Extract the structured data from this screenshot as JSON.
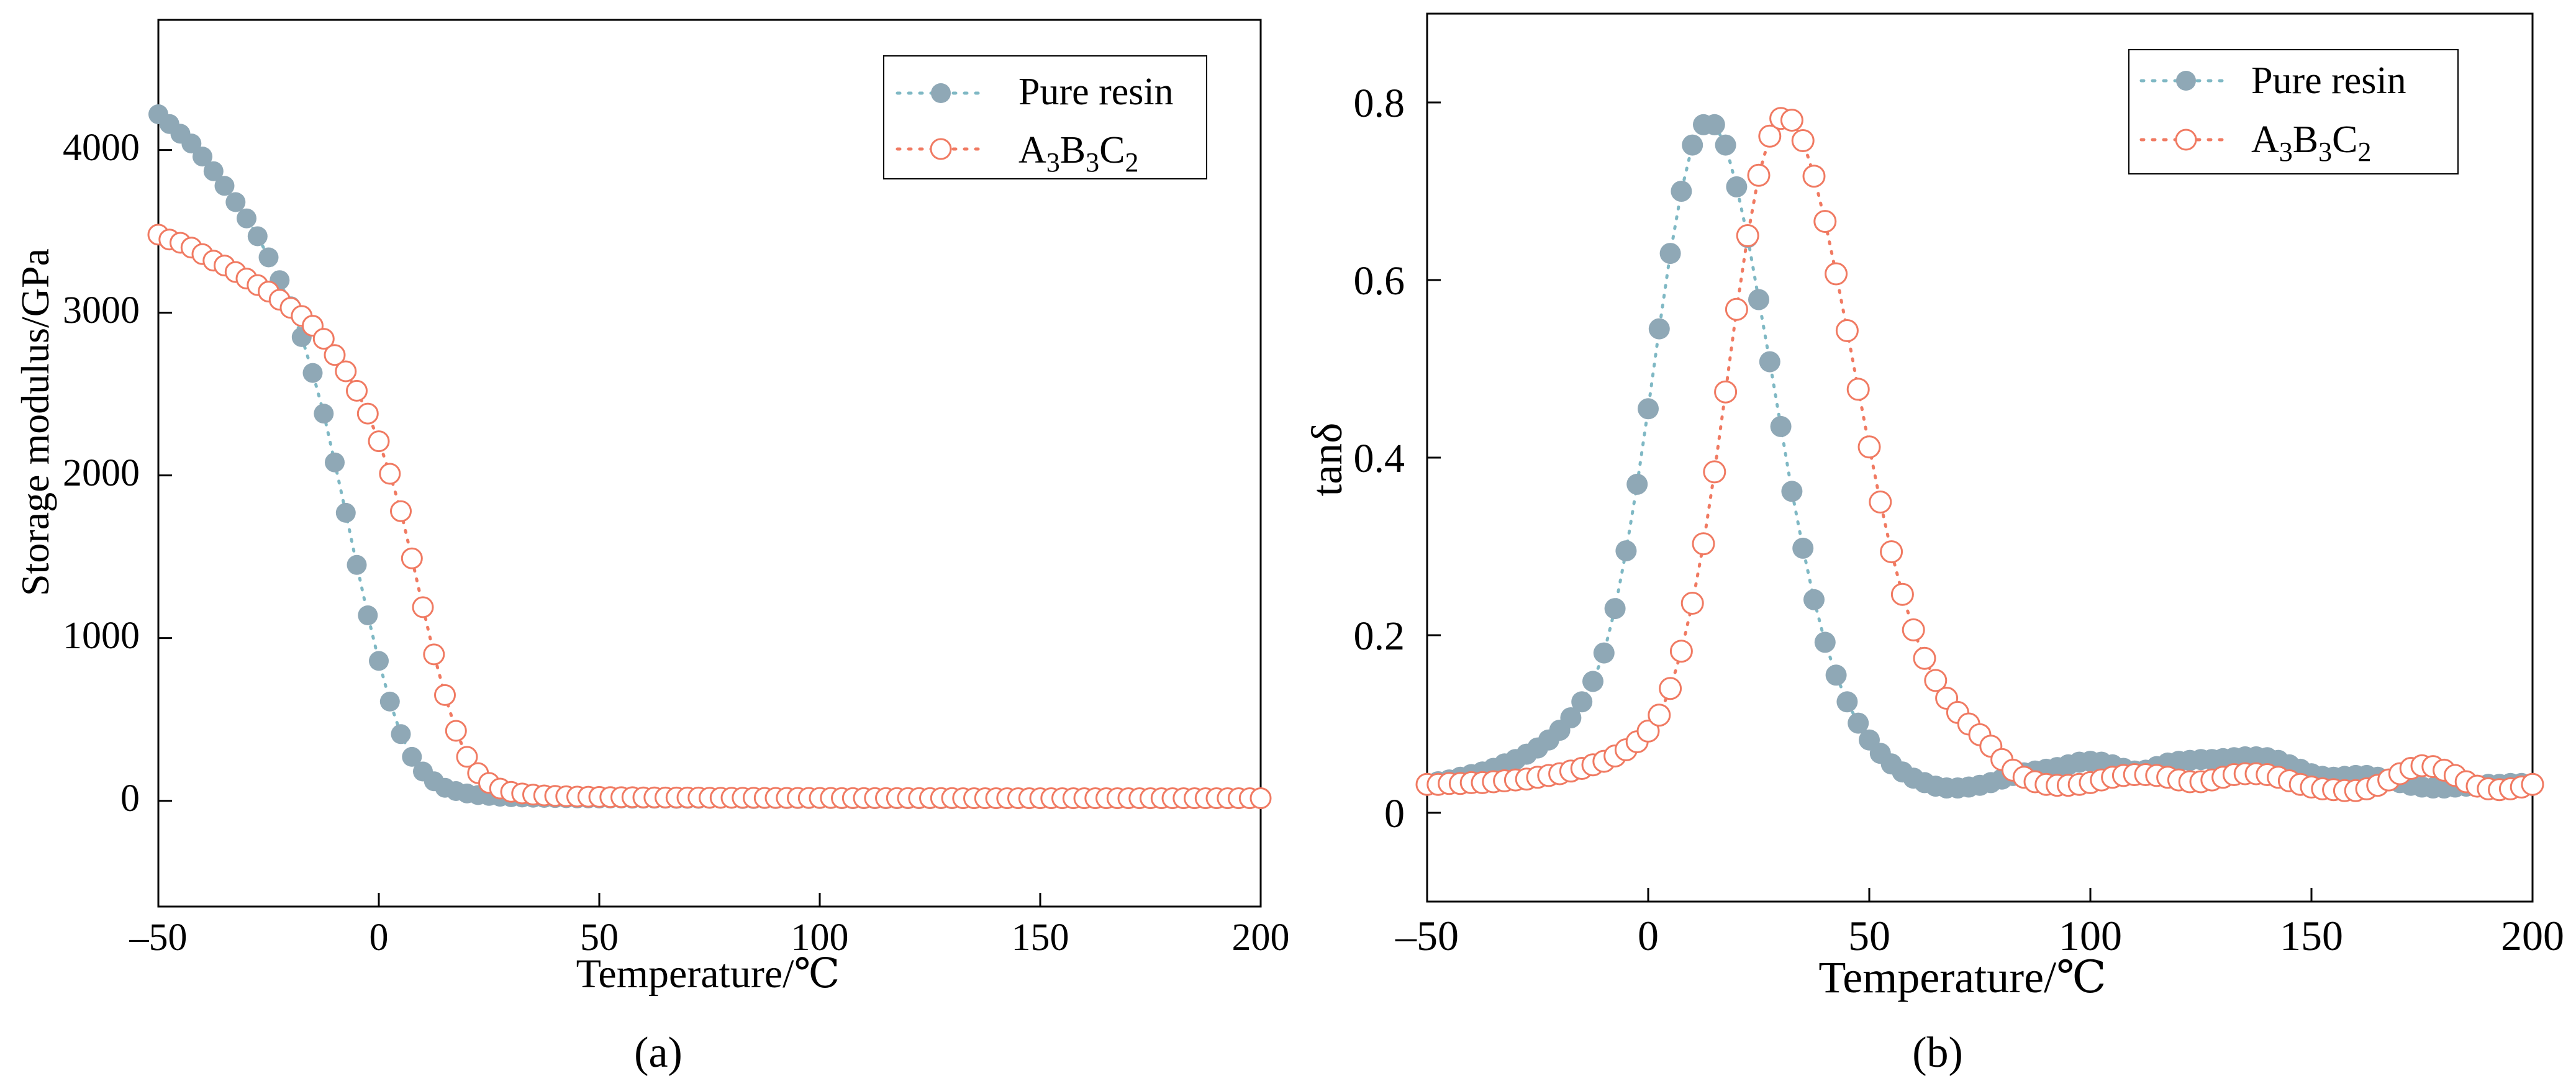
{
  "chart_data": [
    {
      "type": "scatter",
      "panel_label": "(a)",
      "title": "",
      "xlabel": "Temperature/℃",
      "ylabel": "Storage modulus/GPa",
      "xlim": [
        -50,
        200
      ],
      "ylim": [
        -650,
        4800
      ],
      "xticks": [
        -50,
        0,
        50,
        100,
        150,
        200
      ],
      "xtick_labels": [
        "–50",
        "0",
        "50",
        "100",
        "150",
        "200"
      ],
      "yticks": [
        0,
        1000,
        2000,
        3000,
        4000
      ],
      "ytick_labels": [
        "0",
        "1000",
        "2000",
        "3000",
        "4000"
      ],
      "legend_position": "top-right",
      "grid": false,
      "series": [
        {
          "name": "Pure resin",
          "legend_text": "Pure resin",
          "marker": "filled-circle",
          "color": "#8fa8b6",
          "line_color": "#7fb8c4",
          "x": [
            -50,
            -47.5,
            -45,
            -42.5,
            -40,
            -37.5,
            -35,
            -32.5,
            -30,
            -27.5,
            -25,
            -22.5,
            -20,
            -17.5,
            -15,
            -12.5,
            -10,
            -7.5,
            -5,
            -2.5,
            0,
            2.5,
            5,
            7.5,
            10,
            12.5,
            15,
            17.5,
            20,
            22.5,
            25,
            27.5,
            30,
            32.5,
            35,
            37.5,
            40,
            42.5,
            45,
            47.5,
            50,
            52.5,
            55,
            57.5,
            60,
            62.5,
            65,
            67.5,
            70,
            72.5,
            75,
            77.5,
            80,
            82.5,
            85,
            87.5,
            90,
            92.5,
            95,
            97.5,
            100,
            102.5,
            105,
            107.5,
            110,
            112.5,
            115,
            117.5,
            120,
            122.5,
            125,
            127.5,
            130,
            132.5,
            135,
            137.5,
            140,
            142.5,
            145,
            147.5,
            150,
            152.5,
            155,
            157.5,
            160,
            162.5,
            165,
            167.5,
            170,
            172.5,
            175,
            177.5,
            180,
            182.5,
            185,
            187.5,
            190,
            192.5,
            195,
            197.5,
            200
          ],
          "y": [
            4220,
            4160,
            4100,
            4040,
            3960,
            3870,
            3780,
            3680,
            3580,
            3470,
            3340,
            3200,
            3040,
            2850,
            2630,
            2380,
            2080,
            1770,
            1450,
            1140,
            860,
            610,
            410,
            270,
            180,
            120,
            80,
            60,
            45,
            35,
            30,
            25,
            22,
            20,
            19,
            18,
            17,
            16,
            15,
            15,
            14,
            14,
            14,
            13,
            13,
            13,
            13,
            12,
            12,
            12,
            12,
            12,
            12,
            11,
            11,
            11,
            11,
            11,
            11,
            11,
            11,
            11,
            10,
            10,
            10,
            10,
            10,
            10,
            10,
            10,
            10,
            10,
            10,
            10,
            10,
            10,
            10,
            10,
            10,
            10,
            10,
            10,
            10,
            10,
            10,
            10,
            10,
            10,
            10,
            10,
            10,
            10,
            10,
            10,
            10,
            10,
            10,
            10,
            10,
            10,
            10
          ]
        },
        {
          "name": "A3B3C2",
          "legend_text": "A3B3C2",
          "marker": "open-circle",
          "color": "#f07a62",
          "line_color": "#f07a62",
          "x": [
            -50,
            -47.5,
            -45,
            -42.5,
            -40,
            -37.5,
            -35,
            -32.5,
            -30,
            -27.5,
            -25,
            -22.5,
            -20,
            -17.5,
            -15,
            -12.5,
            -10,
            -7.5,
            -5,
            -2.5,
            0,
            2.5,
            5,
            7.5,
            10,
            12.5,
            15,
            17.5,
            20,
            22.5,
            25,
            27.5,
            30,
            32.5,
            35,
            37.5,
            40,
            42.5,
            45,
            47.5,
            50,
            52.5,
            55,
            57.5,
            60,
            62.5,
            65,
            67.5,
            70,
            72.5,
            75,
            77.5,
            80,
            82.5,
            85,
            87.5,
            90,
            92.5,
            95,
            97.5,
            100,
            102.5,
            105,
            107.5,
            110,
            112.5,
            115,
            117.5,
            120,
            122.5,
            125,
            127.5,
            130,
            132.5,
            135,
            137.5,
            140,
            142.5,
            145,
            147.5,
            150,
            152.5,
            155,
            157.5,
            160,
            162.5,
            165,
            167.5,
            170,
            172.5,
            175,
            177.5,
            180,
            182.5,
            185,
            187.5,
            190,
            192.5,
            195,
            197.5,
            200
          ],
          "y": [
            3480,
            3450,
            3430,
            3400,
            3360,
            3320,
            3290,
            3250,
            3210,
            3170,
            3130,
            3080,
            3030,
            2980,
            2920,
            2840,
            2740,
            2640,
            2520,
            2380,
            2210,
            2010,
            1780,
            1490,
            1190,
            900,
            650,
            430,
            270,
            170,
            110,
            75,
            55,
            45,
            38,
            33,
            30,
            28,
            26,
            25,
            24,
            23,
            22,
            22,
            21,
            21,
            20,
            20,
            20,
            20,
            19,
            19,
            19,
            19,
            19,
            18,
            18,
            18,
            18,
            18,
            18,
            18,
            17,
            17,
            17,
            17,
            17,
            17,
            17,
            17,
            17,
            17,
            17,
            16,
            16,
            16,
            16,
            16,
            16,
            16,
            16,
            16,
            16,
            16,
            16,
            16,
            16,
            16,
            16,
            16,
            16,
            16,
            16,
            16,
            16,
            16,
            16,
            16,
            16,
            16,
            16
          ]
        }
      ]
    },
    {
      "type": "scatter",
      "panel_label": "(b)",
      "title": "",
      "xlabel": "Temperature/℃",
      "ylabel": "tanδ",
      "xlim": [
        -50,
        200
      ],
      "ylim": [
        -0.1,
        0.9
      ],
      "xticks": [
        -50,
        0,
        50,
        100,
        150,
        200
      ],
      "xtick_labels": [
        "–50",
        "0",
        "50",
        "100",
        "150",
        "200"
      ],
      "yticks": [
        0,
        0.2,
        0.4,
        0.6,
        0.8
      ],
      "ytick_labels": [
        "0",
        "0.2",
        "0.4",
        "0.6",
        "0.8"
      ],
      "legend_position": "top-right",
      "grid": false,
      "series": [
        {
          "name": "Pure resin",
          "legend_text": "Pure resin",
          "marker": "filled-circle",
          "color": "#8fa8b6",
          "line_color": "#7fb8c4",
          "x": [
            -50,
            -47.5,
            -45,
            -42.5,
            -40,
            -37.5,
            -35,
            -32.5,
            -30,
            -27.5,
            -25,
            -22.5,
            -20,
            -17.5,
            -15,
            -12.5,
            -10,
            -7.5,
            -5,
            -2.5,
            0,
            2.5,
            5,
            7.5,
            10,
            12.5,
            15,
            17.5,
            20,
            22.5,
            25,
            27.5,
            30,
            32.5,
            35,
            37.5,
            40,
            42.5,
            45,
            47.5,
            50,
            52.5,
            55,
            57.5,
            60,
            62.5,
            65,
            67.5,
            70,
            72.5,
            75,
            77.5,
            80,
            82.5,
            85,
            87.5,
            90,
            92.5,
            95,
            97.5,
            100,
            102.5,
            105,
            107.5,
            110,
            112.5,
            115,
            117.5,
            120,
            122.5,
            125,
            127.5,
            130,
            132.5,
            135,
            137.5,
            140,
            142.5,
            145,
            147.5,
            150,
            152.5,
            155,
            157.5,
            160,
            162.5,
            165,
            167.5,
            170,
            172.5,
            175,
            177.5,
            180,
            182.5,
            185,
            187.5,
            190,
            192.5,
            195,
            197.5,
            200
          ],
          "y": [
            0.033,
            0.035,
            0.037,
            0.04,
            0.043,
            0.046,
            0.05,
            0.055,
            0.06,
            0.066,
            0.073,
            0.082,
            0.093,
            0.107,
            0.125,
            0.148,
            0.18,
            0.23,
            0.295,
            0.37,
            0.455,
            0.545,
            0.63,
            0.7,
            0.752,
            0.775,
            0.775,
            0.752,
            0.705,
            0.648,
            0.578,
            0.508,
            0.435,
            0.362,
            0.298,
            0.24,
            0.192,
            0.155,
            0.125,
            0.101,
            0.082,
            0.067,
            0.055,
            0.046,
            0.039,
            0.034,
            0.03,
            0.028,
            0.028,
            0.029,
            0.031,
            0.034,
            0.038,
            0.042,
            0.045,
            0.047,
            0.049,
            0.051,
            0.054,
            0.057,
            0.058,
            0.057,
            0.054,
            0.05,
            0.047,
            0.048,
            0.052,
            0.056,
            0.058,
            0.059,
            0.06,
            0.06,
            0.061,
            0.062,
            0.063,
            0.063,
            0.062,
            0.059,
            0.054,
            0.049,
            0.044,
            0.041,
            0.04,
            0.041,
            0.042,
            0.042,
            0.04,
            0.037,
            0.034,
            0.031,
            0.029,
            0.028,
            0.028,
            0.029,
            0.03,
            0.031,
            0.032,
            0.032,
            0.033,
            0.033,
            0.033
          ]
        },
        {
          "name": "A3B3C2",
          "legend_text": "A3B3C2",
          "marker": "open-circle",
          "color": "#f07a62",
          "line_color": "#f07a62",
          "x": [
            -50,
            -47.5,
            -45,
            -42.5,
            -40,
            -37.5,
            -35,
            -32.5,
            -30,
            -27.5,
            -25,
            -22.5,
            -20,
            -17.5,
            -15,
            -12.5,
            -10,
            -7.5,
            -5,
            -2.5,
            0,
            2.5,
            5,
            7.5,
            10,
            12.5,
            15,
            17.5,
            20,
            22.5,
            25,
            27.5,
            30,
            32.5,
            35,
            37.5,
            40,
            42.5,
            45,
            47.5,
            50,
            52.5,
            55,
            57.5,
            60,
            62.5,
            65,
            67.5,
            70,
            72.5,
            75,
            77.5,
            80,
            82.5,
            85,
            87.5,
            90,
            92.5,
            95,
            97.5,
            100,
            102.5,
            105,
            107.5,
            110,
            112.5,
            115,
            117.5,
            120,
            122.5,
            125,
            127.5,
            130,
            132.5,
            135,
            137.5,
            140,
            142.5,
            145,
            147.5,
            150,
            152.5,
            155,
            157.5,
            160,
            162.5,
            165,
            167.5,
            170,
            172.5,
            175,
            177.5,
            180,
            182.5,
            185,
            187.5,
            190,
            192.5,
            195,
            197.5,
            200
          ],
          "y": [
            0.032,
            0.032,
            0.033,
            0.033,
            0.034,
            0.034,
            0.035,
            0.036,
            0.037,
            0.038,
            0.04,
            0.042,
            0.044,
            0.047,
            0.05,
            0.054,
            0.058,
            0.064,
            0.071,
            0.08,
            0.092,
            0.11,
            0.14,
            0.182,
            0.236,
            0.303,
            0.384,
            0.474,
            0.567,
            0.65,
            0.718,
            0.762,
            0.782,
            0.78,
            0.757,
            0.717,
            0.666,
            0.607,
            0.543,
            0.477,
            0.412,
            0.35,
            0.294,
            0.246,
            0.206,
            0.174,
            0.149,
            0.129,
            0.113,
            0.1,
            0.088,
            0.075,
            0.06,
            0.048,
            0.04,
            0.035,
            0.032,
            0.031,
            0.031,
            0.032,
            0.034,
            0.037,
            0.04,
            0.042,
            0.043,
            0.043,
            0.042,
            0.04,
            0.037,
            0.035,
            0.035,
            0.037,
            0.04,
            0.043,
            0.044,
            0.044,
            0.043,
            0.04,
            0.036,
            0.032,
            0.029,
            0.027,
            0.026,
            0.025,
            0.025,
            0.027,
            0.031,
            0.037,
            0.044,
            0.05,
            0.053,
            0.052,
            0.048,
            0.042,
            0.035,
            0.03,
            0.027,
            0.026,
            0.027,
            0.029,
            0.032
          ]
        }
      ]
    }
  ]
}
